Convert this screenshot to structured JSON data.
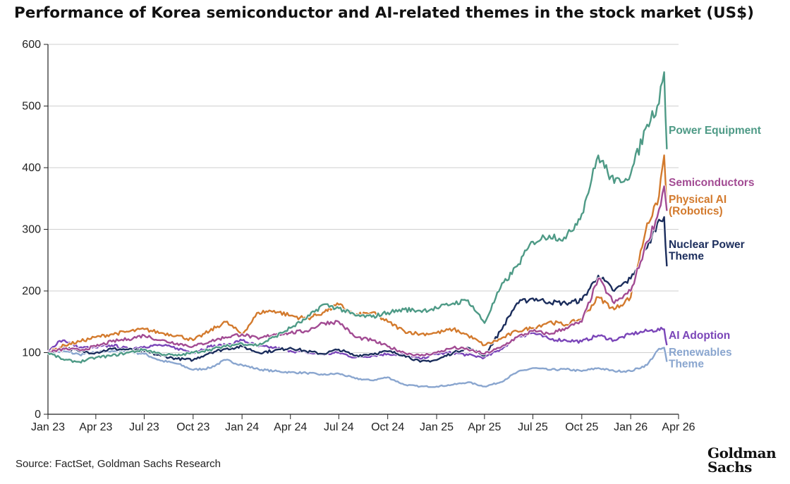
{
  "title": "Performance of Korea semiconductor and AI-related themes in the stock market (US$)",
  "source": "Source: FactSet, Goldman Sachs Research",
  "logo": {
    "line1": "Goldman",
    "line2": "Sachs"
  },
  "chart_data": {
    "type": "line",
    "title": "Performance of Korea semiconductor and AI-related themes in the stock market (US$)",
    "xlabel": "",
    "ylabel": "",
    "ylim": [
      0,
      600
    ],
    "yticks": [
      0,
      100,
      200,
      300,
      400,
      500,
      600
    ],
    "xlim": [
      "2023-01-01",
      "2026-04-01"
    ],
    "xticks": [
      {
        "date": "2023-01-01",
        "label": "Jan 23"
      },
      {
        "date": "2023-04-01",
        "label": "Apr 23"
      },
      {
        "date": "2023-07-01",
        "label": "Jul 23"
      },
      {
        "date": "2023-10-01",
        "label": "Oct 23"
      },
      {
        "date": "2024-01-01",
        "label": "Jan 24"
      },
      {
        "date": "2024-04-01",
        "label": "Apr 24"
      },
      {
        "date": "2024-07-01",
        "label": "Jul 24"
      },
      {
        "date": "2024-10-01",
        "label": "Oct 24"
      },
      {
        "date": "2025-01-01",
        "label": "Jan 25"
      },
      {
        "date": "2025-04-01",
        "label": "Apr 25"
      },
      {
        "date": "2025-07-01",
        "label": "Jul 25"
      },
      {
        "date": "2025-10-01",
        "label": "Oct 25"
      },
      {
        "date": "2026-01-01",
        "label": "Jan 26"
      },
      {
        "date": "2026-04-01",
        "label": "Apr 26"
      }
    ],
    "grid": "horizontal",
    "legend": "direct labels at right end of lines",
    "series": [
      {
        "name": "Renewables Theme",
        "color": "#8aa6cf",
        "points": [
          [
            "2023-01-01",
            100
          ],
          [
            "2023-02-01",
            102
          ],
          [
            "2023-03-01",
            97
          ],
          [
            "2023-04-01",
            100
          ],
          [
            "2023-05-01",
            103
          ],
          [
            "2023-06-01",
            102
          ],
          [
            "2023-07-01",
            98
          ],
          [
            "2023-08-01",
            87
          ],
          [
            "2023-09-01",
            82
          ],
          [
            "2023-10-01",
            72
          ],
          [
            "2023-11-01",
            75
          ],
          [
            "2023-12-01",
            88
          ],
          [
            "2024-01-01",
            80
          ],
          [
            "2024-02-01",
            73
          ],
          [
            "2024-03-01",
            70
          ],
          [
            "2024-04-01",
            68
          ],
          [
            "2024-05-01",
            67
          ],
          [
            "2024-06-01",
            64
          ],
          [
            "2024-07-01",
            66
          ],
          [
            "2024-08-01",
            58
          ],
          [
            "2024-09-01",
            55
          ],
          [
            "2024-10-01",
            60
          ],
          [
            "2024-11-01",
            48
          ],
          [
            "2024-12-01",
            45
          ],
          [
            "2025-01-01",
            45
          ],
          [
            "2025-02-01",
            48
          ],
          [
            "2025-03-01",
            52
          ],
          [
            "2025-04-01",
            45
          ],
          [
            "2025-05-01",
            52
          ],
          [
            "2025-06-01",
            68
          ],
          [
            "2025-07-01",
            75
          ],
          [
            "2025-08-01",
            72
          ],
          [
            "2025-09-01",
            73
          ],
          [
            "2025-10-01",
            70
          ],
          [
            "2025-11-01",
            75
          ],
          [
            "2025-12-01",
            70
          ],
          [
            "2026-01-01",
            70
          ],
          [
            "2026-02-01",
            80
          ],
          [
            "2026-02-20",
            103
          ],
          [
            "2026-03-05",
            108
          ],
          [
            "2026-03-10",
            85
          ]
        ]
      },
      {
        "name": "AI Adoption",
        "color": "#7a45b8",
        "points": [
          [
            "2023-01-01",
            100
          ],
          [
            "2023-01-20",
            118
          ],
          [
            "2023-02-01",
            120
          ],
          [
            "2023-03-01",
            108
          ],
          [
            "2023-04-01",
            108
          ],
          [
            "2023-05-01",
            112
          ],
          [
            "2023-06-01",
            106
          ],
          [
            "2023-07-01",
            110
          ],
          [
            "2023-08-01",
            112
          ],
          [
            "2023-09-01",
            107
          ],
          [
            "2023-10-01",
            100
          ],
          [
            "2023-11-01",
            110
          ],
          [
            "2023-12-01",
            112
          ],
          [
            "2024-01-01",
            120
          ],
          [
            "2024-02-01",
            110
          ],
          [
            "2024-03-01",
            108
          ],
          [
            "2024-04-01",
            103
          ],
          [
            "2024-05-01",
            100
          ],
          [
            "2024-06-01",
            97
          ],
          [
            "2024-07-01",
            100
          ],
          [
            "2024-08-01",
            92
          ],
          [
            "2024-09-01",
            95
          ],
          [
            "2024-10-01",
            98
          ],
          [
            "2024-11-01",
            96
          ],
          [
            "2024-12-01",
            90
          ],
          [
            "2025-01-01",
            98
          ],
          [
            "2025-02-01",
            100
          ],
          [
            "2025-03-01",
            96
          ],
          [
            "2025-04-01",
            92
          ],
          [
            "2025-05-01",
            105
          ],
          [
            "2025-06-01",
            125
          ],
          [
            "2025-07-01",
            132
          ],
          [
            "2025-08-01",
            122
          ],
          [
            "2025-09-01",
            120
          ],
          [
            "2025-10-01",
            118
          ],
          [
            "2025-11-01",
            128
          ],
          [
            "2025-12-01",
            120
          ],
          [
            "2026-01-01",
            130
          ],
          [
            "2026-02-01",
            135
          ],
          [
            "2026-03-05",
            138
          ],
          [
            "2026-03-10",
            112
          ]
        ]
      },
      {
        "name": "Nuclear Power Theme",
        "color": "#1b2d5c",
        "points": [
          [
            "2023-01-01",
            100
          ],
          [
            "2023-02-01",
            108
          ],
          [
            "2023-03-01",
            102
          ],
          [
            "2023-04-01",
            100
          ],
          [
            "2023-05-01",
            106
          ],
          [
            "2023-06-01",
            105
          ],
          [
            "2023-07-01",
            102
          ],
          [
            "2023-08-01",
            95
          ],
          [
            "2023-09-01",
            90
          ],
          [
            "2023-10-01",
            88
          ],
          [
            "2023-11-01",
            100
          ],
          [
            "2023-12-01",
            106
          ],
          [
            "2024-01-01",
            110
          ],
          [
            "2024-02-01",
            100
          ],
          [
            "2024-03-01",
            103
          ],
          [
            "2024-04-01",
            108
          ],
          [
            "2024-05-01",
            102
          ],
          [
            "2024-06-01",
            98
          ],
          [
            "2024-07-01",
            105
          ],
          [
            "2024-08-01",
            95
          ],
          [
            "2024-09-01",
            98
          ],
          [
            "2024-10-01",
            102
          ],
          [
            "2024-11-01",
            96
          ],
          [
            "2024-12-01",
            85
          ],
          [
            "2025-01-01",
            88
          ],
          [
            "2025-02-01",
            100
          ],
          [
            "2025-03-01",
            108
          ],
          [
            "2025-04-01",
            95
          ],
          [
            "2025-05-01",
            135
          ],
          [
            "2025-06-01",
            180
          ],
          [
            "2025-07-01",
            188
          ],
          [
            "2025-08-01",
            182
          ],
          [
            "2025-09-01",
            180
          ],
          [
            "2025-10-01",
            185
          ],
          [
            "2025-11-01",
            225
          ],
          [
            "2025-12-01",
            200
          ],
          [
            "2026-01-01",
            220
          ],
          [
            "2026-02-01",
            270
          ],
          [
            "2026-02-20",
            310
          ],
          [
            "2026-03-05",
            320
          ],
          [
            "2026-03-10",
            240
          ]
        ]
      },
      {
        "name": "Physical AI (Robotics)",
        "color": "#d37a2d",
        "points": [
          [
            "2023-01-01",
            100
          ],
          [
            "2023-02-01",
            112
          ],
          [
            "2023-03-01",
            118
          ],
          [
            "2023-04-01",
            125
          ],
          [
            "2023-05-01",
            130
          ],
          [
            "2023-06-01",
            134
          ],
          [
            "2023-07-01",
            138
          ],
          [
            "2023-08-01",
            132
          ],
          [
            "2023-09-01",
            128
          ],
          [
            "2023-10-01",
            120
          ],
          [
            "2023-11-01",
            135
          ],
          [
            "2023-12-01",
            150
          ],
          [
            "2024-01-01",
            130
          ],
          [
            "2024-02-01",
            165
          ],
          [
            "2024-03-01",
            168
          ],
          [
            "2024-04-01",
            160
          ],
          [
            "2024-05-01",
            155
          ],
          [
            "2024-06-01",
            165
          ],
          [
            "2024-07-01",
            178
          ],
          [
            "2024-08-01",
            160
          ],
          [
            "2024-09-01",
            165
          ],
          [
            "2024-10-01",
            150
          ],
          [
            "2024-11-01",
            135
          ],
          [
            "2024-12-01",
            130
          ],
          [
            "2025-01-01",
            132
          ],
          [
            "2025-02-01",
            138
          ],
          [
            "2025-03-01",
            128
          ],
          [
            "2025-04-01",
            112
          ],
          [
            "2025-05-01",
            122
          ],
          [
            "2025-06-01",
            135
          ],
          [
            "2025-07-01",
            140
          ],
          [
            "2025-08-01",
            150
          ],
          [
            "2025-09-01",
            145
          ],
          [
            "2025-10-01",
            155
          ],
          [
            "2025-11-01",
            190
          ],
          [
            "2025-12-01",
            170
          ],
          [
            "2026-01-01",
            190
          ],
          [
            "2026-02-01",
            310
          ],
          [
            "2026-02-20",
            340
          ],
          [
            "2026-03-05",
            420
          ],
          [
            "2026-03-10",
            330
          ]
        ]
      },
      {
        "name": "Semiconductors",
        "color": "#a24b93",
        "points": [
          [
            "2023-01-01",
            100
          ],
          [
            "2023-02-01",
            106
          ],
          [
            "2023-03-01",
            104
          ],
          [
            "2023-04-01",
            110
          ],
          [
            "2023-05-01",
            118
          ],
          [
            "2023-06-01",
            122
          ],
          [
            "2023-07-01",
            128
          ],
          [
            "2023-08-01",
            120
          ],
          [
            "2023-09-01",
            115
          ],
          [
            "2023-10-01",
            110
          ],
          [
            "2023-11-01",
            118
          ],
          [
            "2023-12-01",
            125
          ],
          [
            "2024-01-01",
            130
          ],
          [
            "2024-02-01",
            122
          ],
          [
            "2024-03-01",
            130
          ],
          [
            "2024-04-01",
            132
          ],
          [
            "2024-05-01",
            135
          ],
          [
            "2024-06-01",
            148
          ],
          [
            "2024-07-01",
            150
          ],
          [
            "2024-08-01",
            125
          ],
          [
            "2024-09-01",
            120
          ],
          [
            "2024-10-01",
            110
          ],
          [
            "2024-11-01",
            100
          ],
          [
            "2024-12-01",
            95
          ],
          [
            "2025-01-01",
            100
          ],
          [
            "2025-02-01",
            108
          ],
          [
            "2025-03-01",
            105
          ],
          [
            "2025-04-01",
            98
          ],
          [
            "2025-05-01",
            108
          ],
          [
            "2025-06-01",
            125
          ],
          [
            "2025-07-01",
            135
          ],
          [
            "2025-08-01",
            130
          ],
          [
            "2025-09-01",
            140
          ],
          [
            "2025-10-01",
            150
          ],
          [
            "2025-11-01",
            220
          ],
          [
            "2025-12-01",
            180
          ],
          [
            "2026-01-01",
            200
          ],
          [
            "2026-02-01",
            280
          ],
          [
            "2026-02-20",
            320
          ],
          [
            "2026-03-05",
            370
          ],
          [
            "2026-03-10",
            330
          ]
        ]
      },
      {
        "name": "Power Equipment",
        "color": "#4e9a86",
        "points": [
          [
            "2023-01-01",
            100
          ],
          [
            "2023-02-01",
            88
          ],
          [
            "2023-03-01",
            85
          ],
          [
            "2023-04-01",
            92
          ],
          [
            "2023-05-01",
            95
          ],
          [
            "2023-06-01",
            100
          ],
          [
            "2023-07-01",
            105
          ],
          [
            "2023-08-01",
            98
          ],
          [
            "2023-09-01",
            95
          ],
          [
            "2023-10-01",
            100
          ],
          [
            "2023-11-01",
            105
          ],
          [
            "2023-12-01",
            110
          ],
          [
            "2024-01-01",
            115
          ],
          [
            "2024-02-01",
            112
          ],
          [
            "2024-03-01",
            125
          ],
          [
            "2024-04-01",
            140
          ],
          [
            "2024-05-01",
            155
          ],
          [
            "2024-06-01",
            178
          ],
          [
            "2024-07-01",
            172
          ],
          [
            "2024-08-01",
            160
          ],
          [
            "2024-09-01",
            158
          ],
          [
            "2024-10-01",
            165
          ],
          [
            "2024-11-01",
            170
          ],
          [
            "2024-12-01",
            168
          ],
          [
            "2025-01-01",
            172
          ],
          [
            "2025-02-01",
            180
          ],
          [
            "2025-03-01",
            185
          ],
          [
            "2025-04-01",
            148
          ],
          [
            "2025-05-01",
            205
          ],
          [
            "2025-06-01",
            240
          ],
          [
            "2025-07-01",
            280
          ],
          [
            "2025-08-01",
            290
          ],
          [
            "2025-09-01",
            285
          ],
          [
            "2025-10-01",
            325
          ],
          [
            "2025-11-01",
            420
          ],
          [
            "2025-12-01",
            375
          ],
          [
            "2026-01-01",
            390
          ],
          [
            "2026-02-01",
            470
          ],
          [
            "2026-02-20",
            500
          ],
          [
            "2026-03-05",
            555
          ],
          [
            "2026-03-10",
            430
          ]
        ]
      }
    ],
    "labels": [
      {
        "series": "Power Equipment",
        "lines": [
          "Power Equipment"
        ],
        "y": 190
      },
      {
        "series": "Semiconductors",
        "lines": [
          "Semiconductors"
        ],
        "y": 264
      },
      {
        "series": "Physical AI (Robotics)",
        "lines": [
          "Physical AI",
          "(Robotics)"
        ],
        "y": 288
      },
      {
        "series": "Nuclear Power Theme",
        "lines": [
          "Nuclear Power",
          "Theme"
        ],
        "y": 352
      },
      {
        "series": "AI Adoption",
        "lines": [
          "AI Adoption"
        ],
        "y": 481
      },
      {
        "series": "Renewables Theme",
        "lines": [
          "Renewables",
          "Theme"
        ],
        "y": 505
      }
    ]
  }
}
